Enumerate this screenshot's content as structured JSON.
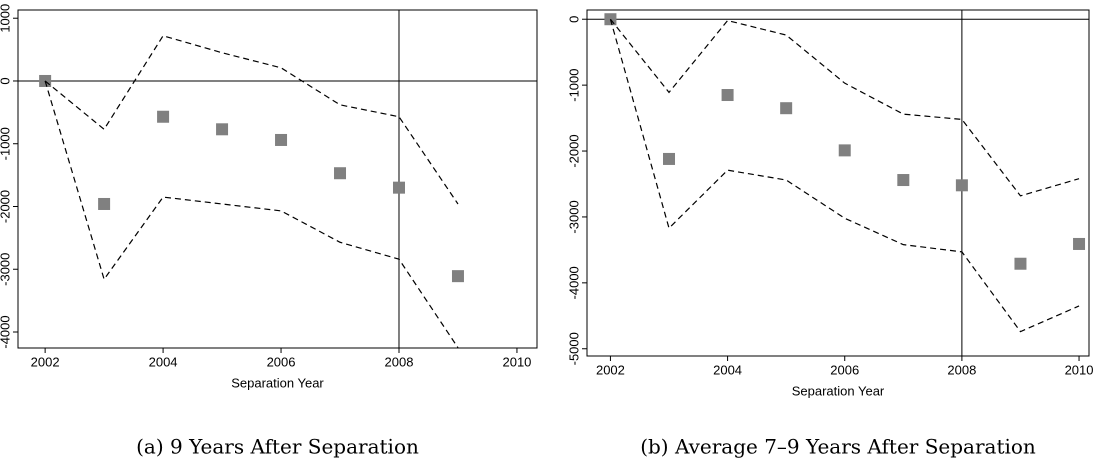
{
  "chart_data": [
    {
      "type": "scatter",
      "caption": "(a) 9 Years After Separation",
      "xlabel": "Separation Year",
      "x": [
        2002,
        2003,
        2004,
        2005,
        2006,
        2007,
        2008,
        2009
      ],
      "series": [
        {
          "color": "#808080",
          "marker": "square",
          "values": [
            0,
            -1960,
            -570,
            -770,
            -940,
            -1470,
            -1700,
            -3110
          ]
        },
        {
          "color": "#000000",
          "line": "dashed",
          "values": [
            0,
            -770,
            720,
            450,
            210,
            -380,
            -570,
            -1960
          ]
        },
        {
          "color": "#000000",
          "line": "dashed",
          "values": [
            0,
            -3160,
            -1850,
            -1960,
            -2070,
            -2570,
            -2840,
            -4250
          ]
        }
      ],
      "xlim": [
        2001.54,
        2010.34
      ],
      "ylim": [
        -4255,
        1131
      ],
      "xticks": [
        2002,
        2004,
        2006,
        2008,
        2010
      ],
      "yticks": [
        1000,
        0,
        -1000,
        -2000,
        -3000,
        -4000
      ],
      "vlines": [
        2008
      ],
      "hlines": [
        0
      ]
    },
    {
      "type": "scatter",
      "caption": "(b) Average 7–9 Years After Separation",
      "xlabel": "Separation Year",
      "x": [
        2002,
        2003,
        2004,
        2005,
        2006,
        2007,
        2008,
        2009,
        2010
      ],
      "series": [
        {
          "color": "#808080",
          "marker": "square",
          "values": [
            0,
            -2120,
            -1150,
            -1350,
            -1990,
            -2440,
            -2520,
            -3710,
            -3410
          ]
        },
        {
          "color": "#000000",
          "line": "dashed",
          "values": [
            0,
            -1110,
            -20,
            -240,
            -970,
            -1440,
            -1520,
            -2680,
            -2420
          ]
        },
        {
          "color": "#000000",
          "line": "dashed",
          "values": [
            0,
            -3170,
            -2290,
            -2440,
            -3020,
            -3420,
            -3530,
            -4740,
            -4350
          ]
        }
      ],
      "xlim": [
        2001.6,
        2010.17
      ],
      "ylim": [
        -5110,
        140
      ],
      "xticks": [
        2002,
        2004,
        2006,
        2008,
        2010
      ],
      "yticks": [
        0,
        -1000,
        -2000,
        -3000,
        -4000,
        -5000
      ],
      "vlines": [
        2008
      ],
      "hlines": [
        0
      ]
    }
  ]
}
